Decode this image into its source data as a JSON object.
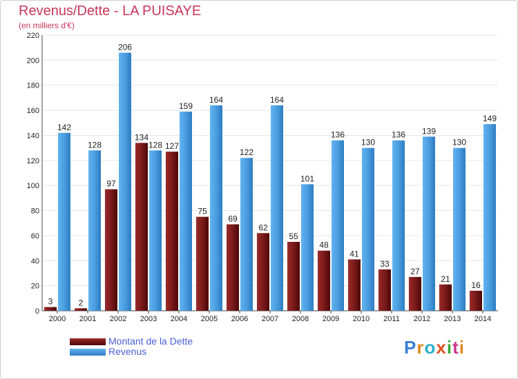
{
  "title": "Revenus/Dette - LA PUISAYE",
  "subtitle": "(en milliers d'€)",
  "logo_text": "Proxiti",
  "colors": {
    "debt": "#7b1a1a",
    "revenue": "#4a9ee0",
    "title": "#c8365a",
    "legend_text": "#4a5fd6"
  },
  "chart_data": {
    "type": "bar",
    "title": "Revenus/Dette - LA PUISAYE",
    "subtitle": "(en milliers d'€)",
    "categories": [
      "2000",
      "2001",
      "2002",
      "2003",
      "2004",
      "2005",
      "2006",
      "2007",
      "2008",
      "2009",
      "2010",
      "2011",
      "2012",
      "2013",
      "2014"
    ],
    "series": [
      {
        "name": "Montant de la Dette",
        "values": [
          3,
          2,
          97,
          134,
          127,
          75,
          69,
          62,
          55,
          48,
          41,
          33,
          27,
          21,
          16
        ]
      },
      {
        "name": "Revenus",
        "values": [
          142,
          128,
          206,
          128,
          159,
          164,
          122,
          164,
          101,
          136,
          130,
          136,
          139,
          130,
          149
        ]
      }
    ],
    "ylim": [
      0,
      220
    ],
    "yticks": [
      0,
      20,
      40,
      60,
      80,
      100,
      120,
      140,
      160,
      180,
      200,
      220
    ],
    "grid": true,
    "legend": "bottom-left"
  }
}
